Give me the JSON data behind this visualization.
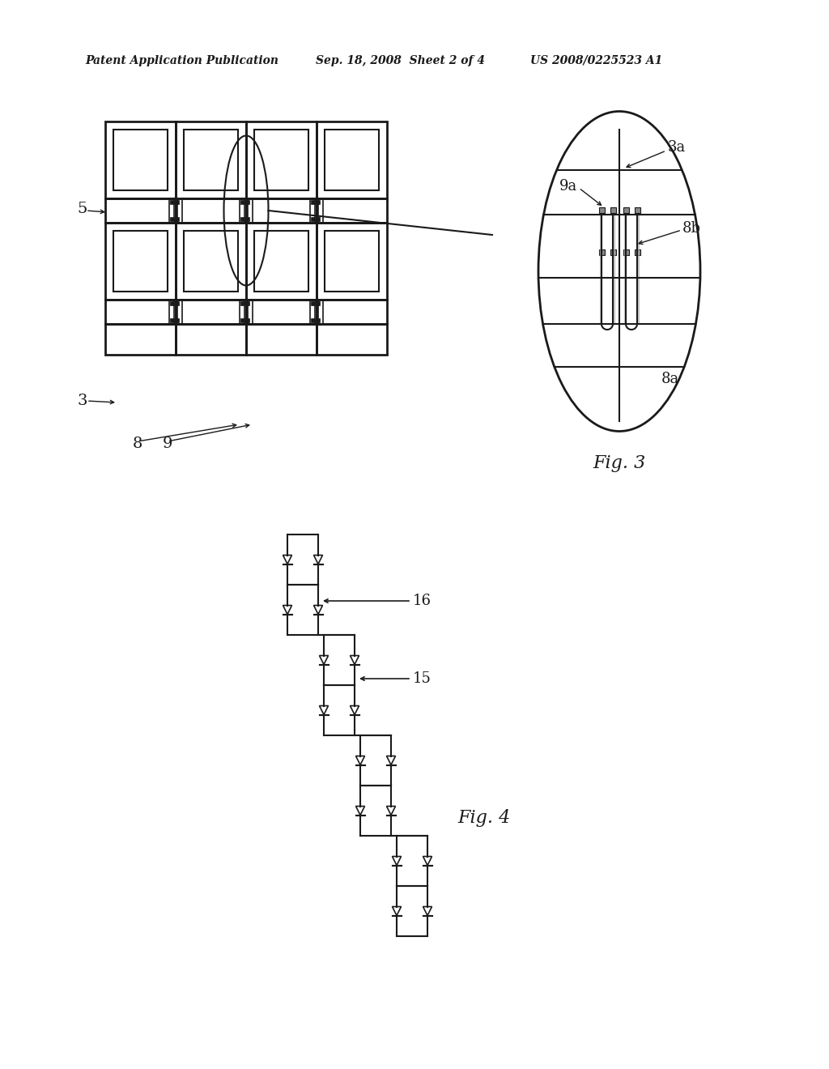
{
  "bg_color": "#ffffff",
  "line_color": "#1a1a1a",
  "header_text": "Patent Application Publication",
  "header_date": "Sep. 18, 2008  Sheet 2 of 4",
  "header_patent": "US 2008/0225523 A1",
  "fig3_label": "Fig. 3",
  "fig4_label": "Fig. 4",
  "label_5": "5",
  "label_3": "3",
  "label_8": "8",
  "label_9": "9",
  "label_3a": "3a",
  "label_8a": "8a",
  "label_8b": "8b",
  "label_9a": "9a",
  "label_15": "15",
  "label_16": "16"
}
